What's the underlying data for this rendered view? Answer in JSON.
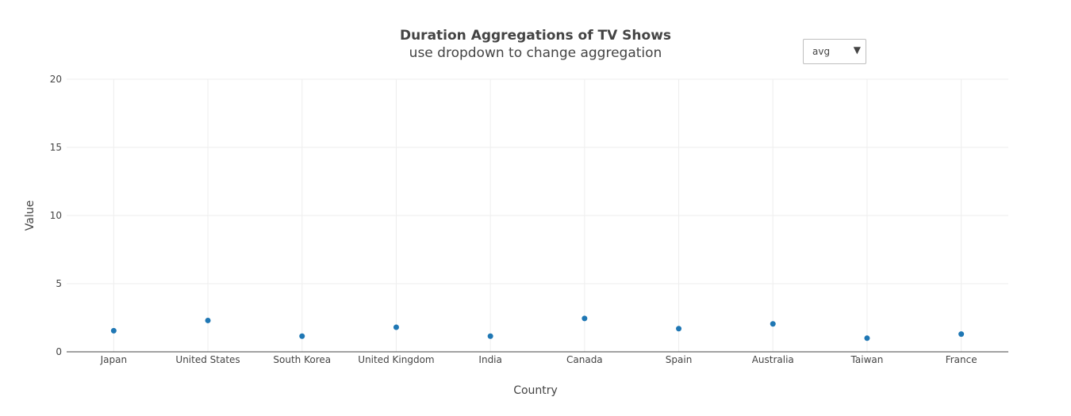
{
  "chart_data": {
    "type": "scatter",
    "title": "Duration Aggregations of TV Shows",
    "subtitle": "use dropdown to change aggregation",
    "xlabel": "Country",
    "ylabel": "Value",
    "categories": [
      "Japan",
      "United States",
      "South Korea",
      "United Kingdom",
      "India",
      "Canada",
      "Spain",
      "Australia",
      "Taiwan",
      "France"
    ],
    "series": [
      {
        "values": [
          1.55,
          2.3,
          1.15,
          1.8,
          1.15,
          2.45,
          1.7,
          2.05,
          1.0,
          1.3
        ],
        "color": "#1f77b4"
      }
    ],
    "ylim": [
      0,
      20
    ],
    "yticks": [
      "0",
      "5",
      "10",
      "15",
      "20"
    ],
    "grid": true,
    "legend": "none"
  },
  "controls": {
    "aggregation_dropdown": {
      "selected": "avg",
      "arrow_icon": "triangle-down-icon"
    }
  }
}
